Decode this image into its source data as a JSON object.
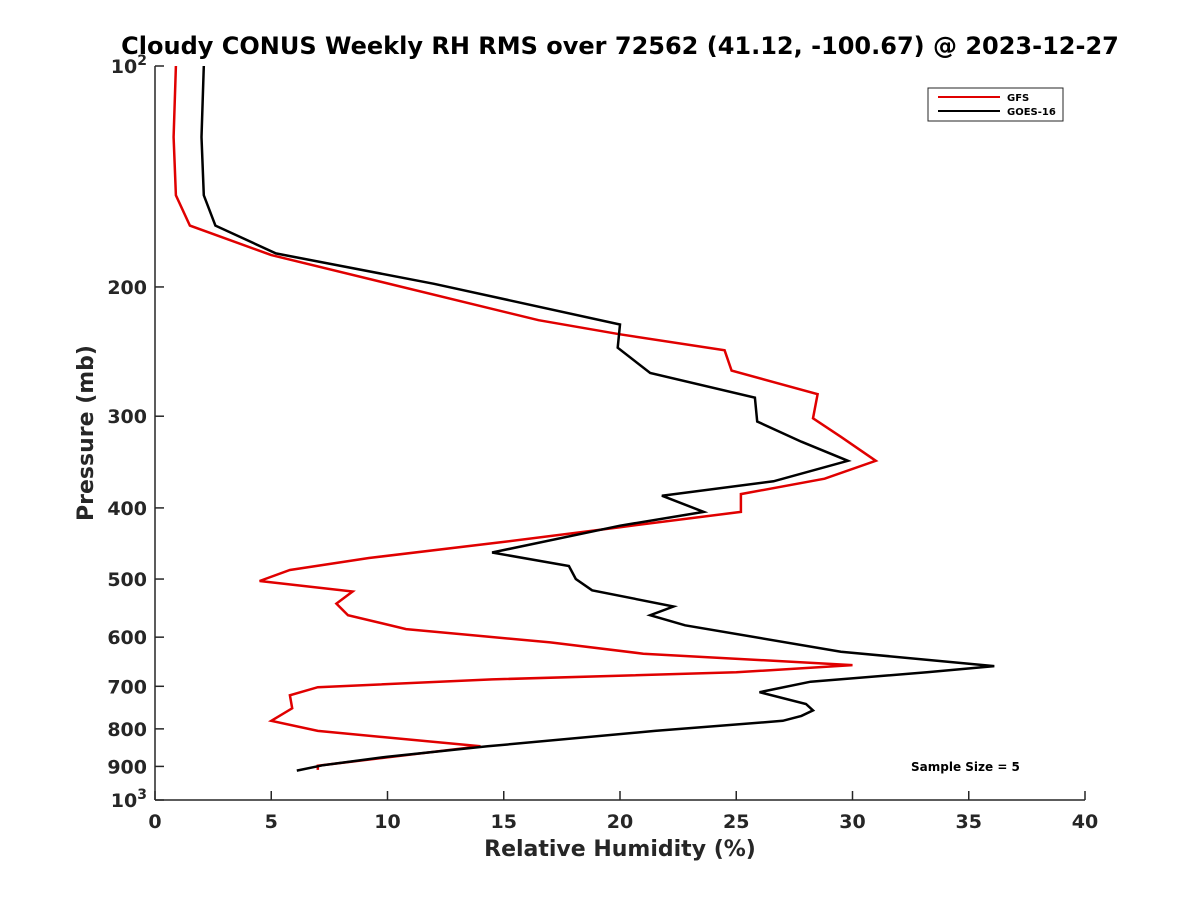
{
  "chart_data": {
    "type": "line",
    "title": "Cloudy CONUS Weekly RH RMS over 72562 (41.12, -100.67) @ 2023-12-27",
    "xlabel": "Relative Humidity (%)",
    "ylabel": "Pressure (mb)",
    "xlim": [
      0,
      40
    ],
    "ylim": [
      100,
      1000
    ],
    "y_scale": "log",
    "y_reversed": true,
    "x_ticks": [
      "0",
      "5",
      "10",
      "15",
      "20",
      "25",
      "30",
      "35",
      "40"
    ],
    "x_tick_values": [
      0,
      5,
      10,
      15,
      20,
      25,
      30,
      35,
      40
    ],
    "y_tick_values": [
      100,
      200,
      300,
      400,
      500,
      600,
      700,
      800,
      900,
      1000
    ],
    "y_ticks": [
      {
        "base": "10",
        "exp": "2"
      },
      {
        "base": "200",
        "exp": ""
      },
      {
        "base": "300",
        "exp": ""
      },
      {
        "base": "400",
        "exp": ""
      },
      {
        "base": "500",
        "exp": ""
      },
      {
        "base": "600",
        "exp": ""
      },
      {
        "base": "700",
        "exp": ""
      },
      {
        "base": "800",
        "exp": ""
      },
      {
        "base": "900",
        "exp": ""
      },
      {
        "base": "10",
        "exp": "3"
      }
    ],
    "grid": false,
    "legend_position": "top-right",
    "annotation": "Sample Size = 5",
    "series": [
      {
        "name": "GFS",
        "color": "#e00000",
        "points": [
          [
            0.9,
            100
          ],
          [
            0.8,
            125
          ],
          [
            0.9,
            150
          ],
          [
            1.5,
            165
          ],
          [
            5.0,
            181
          ],
          [
            16.5,
            222
          ],
          [
            20.0,
            232
          ],
          [
            24.5,
            244
          ],
          [
            24.8,
            260
          ],
          [
            28.5,
            280
          ],
          [
            28.3,
            302
          ],
          [
            29.5,
            320
          ],
          [
            31.0,
            345
          ],
          [
            28.8,
            365
          ],
          [
            25.2,
            383
          ],
          [
            25.2,
            405
          ],
          [
            20.0,
            425
          ],
          [
            15.0,
            445
          ],
          [
            9.2,
            468
          ],
          [
            5.8,
            486
          ],
          [
            4.5,
            503
          ],
          [
            8.5,
            520
          ],
          [
            7.8,
            540
          ],
          [
            8.3,
            560
          ],
          [
            10.8,
            585
          ],
          [
            17.0,
            610
          ],
          [
            21.0,
            632
          ],
          [
            30.0,
            655
          ],
          [
            25.0,
            670
          ],
          [
            14.5,
            685
          ],
          [
            7.0,
            702
          ],
          [
            5.8,
            720
          ],
          [
            5.9,
            750
          ],
          [
            5.0,
            780
          ],
          [
            7.0,
            805
          ],
          [
            14.0,
            845
          ],
          [
            7.0,
            898
          ],
          [
            7.0,
            910
          ]
        ]
      },
      {
        "name": "GOES-16",
        "color": "#000000",
        "points": [
          [
            2.1,
            100
          ],
          [
            2.0,
            125
          ],
          [
            2.1,
            150
          ],
          [
            2.6,
            165
          ],
          [
            5.2,
            180
          ],
          [
            12.0,
            198
          ],
          [
            20.0,
            225
          ],
          [
            19.9,
            242
          ],
          [
            21.3,
            262
          ],
          [
            25.8,
            283
          ],
          [
            25.9,
            305
          ],
          [
            27.8,
            325
          ],
          [
            29.8,
            345
          ],
          [
            26.6,
            368
          ],
          [
            21.8,
            385
          ],
          [
            23.6,
            405
          ],
          [
            20.0,
            423
          ],
          [
            14.5,
            460
          ],
          [
            17.8,
            480
          ],
          [
            18.1,
            500
          ],
          [
            18.8,
            518
          ],
          [
            22.3,
            545
          ],
          [
            21.3,
            560
          ],
          [
            22.8,
            578
          ],
          [
            29.5,
            628
          ],
          [
            36.1,
            657
          ],
          [
            33.2,
            670
          ],
          [
            28.2,
            690
          ],
          [
            26.0,
            713
          ],
          [
            28.0,
            740
          ],
          [
            28.3,
            755
          ],
          [
            27.8,
            768
          ],
          [
            27.0,
            780
          ],
          [
            21.5,
            805
          ],
          [
            14.3,
            845
          ],
          [
            10.0,
            873
          ],
          [
            7.2,
            897
          ],
          [
            6.1,
            912
          ]
        ]
      }
    ]
  }
}
